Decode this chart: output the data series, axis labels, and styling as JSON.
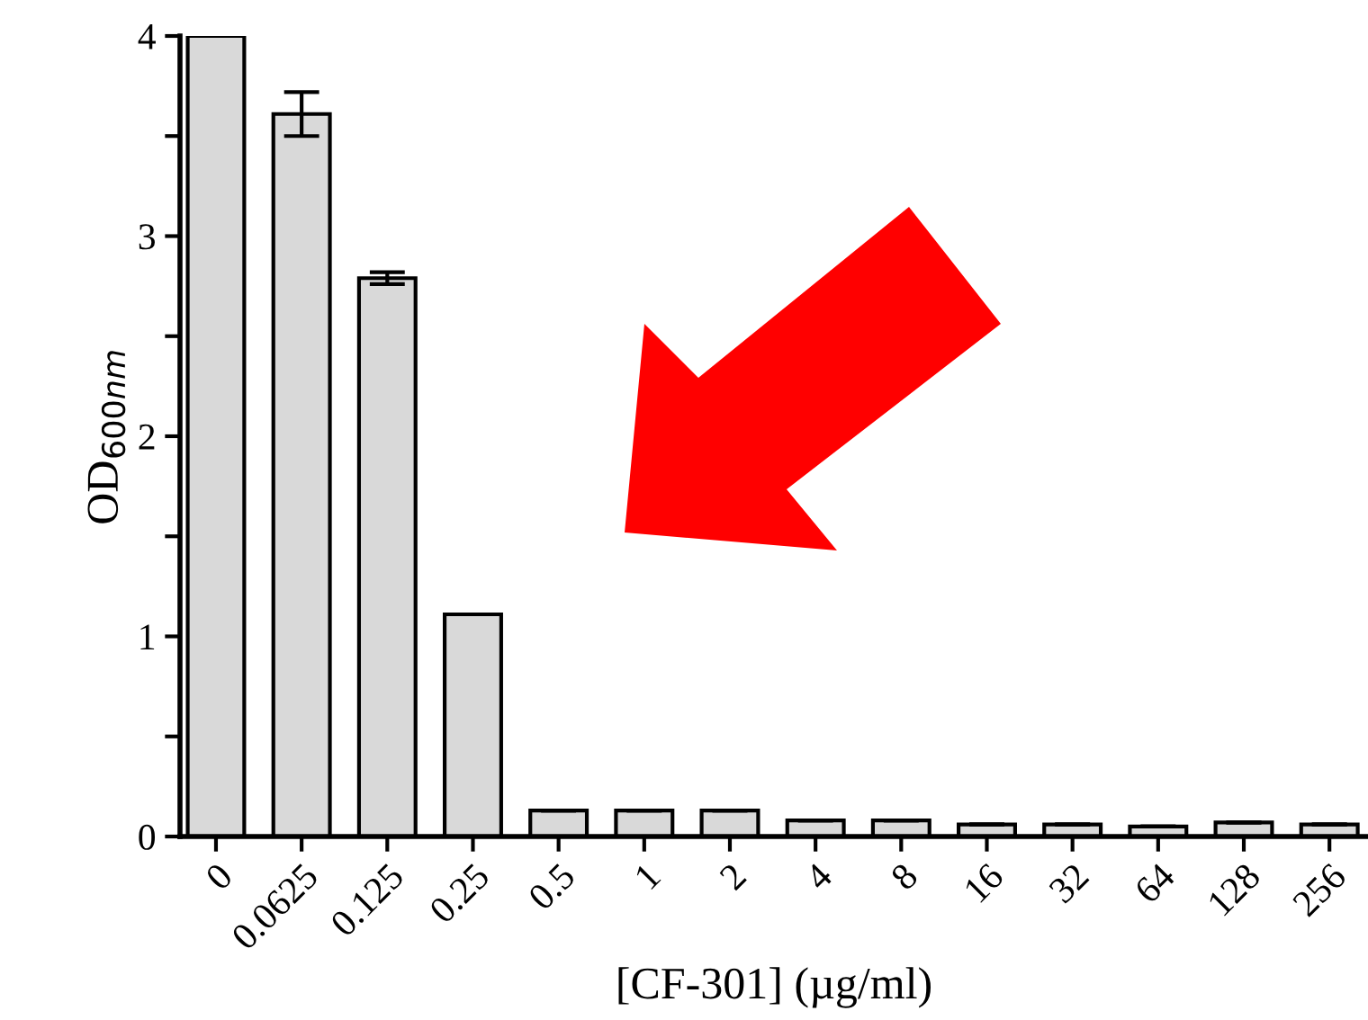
{
  "chart_data": {
    "type": "bar",
    "xlabel": "[CF-301] (µg/ml)",
    "ylabel": "OD$_{600nm}$",
    "categories": [
      "0",
      "0.0625",
      "0.125",
      "0.25",
      "0.5",
      "1",
      "2",
      "4",
      "8",
      "16",
      "32",
      "64",
      "128",
      "256"
    ],
    "values": [
      4.0,
      3.61,
      2.79,
      1.11,
      0.13,
      0.13,
      0.13,
      0.08,
      0.08,
      0.06,
      0.06,
      0.05,
      0.07,
      0.06
    ],
    "errors": [
      null,
      0.11,
      0.03,
      null,
      null,
      null,
      null,
      null,
      null,
      null,
      null,
      null,
      null,
      null
    ],
    "color": "#d9d9d9",
    "ylim": [
      0,
      4
    ],
    "yticks": [
      0,
      {
        "value": 0.5,
        "label": null
      },
      1,
      {
        "value": 1.5,
        "label": null
      },
      2,
      {
        "value": 2.5,
        "label": null
      },
      3,
      {
        "value": 3.5,
        "label": null
      },
      4
    ],
    "grid": false
  }
}
